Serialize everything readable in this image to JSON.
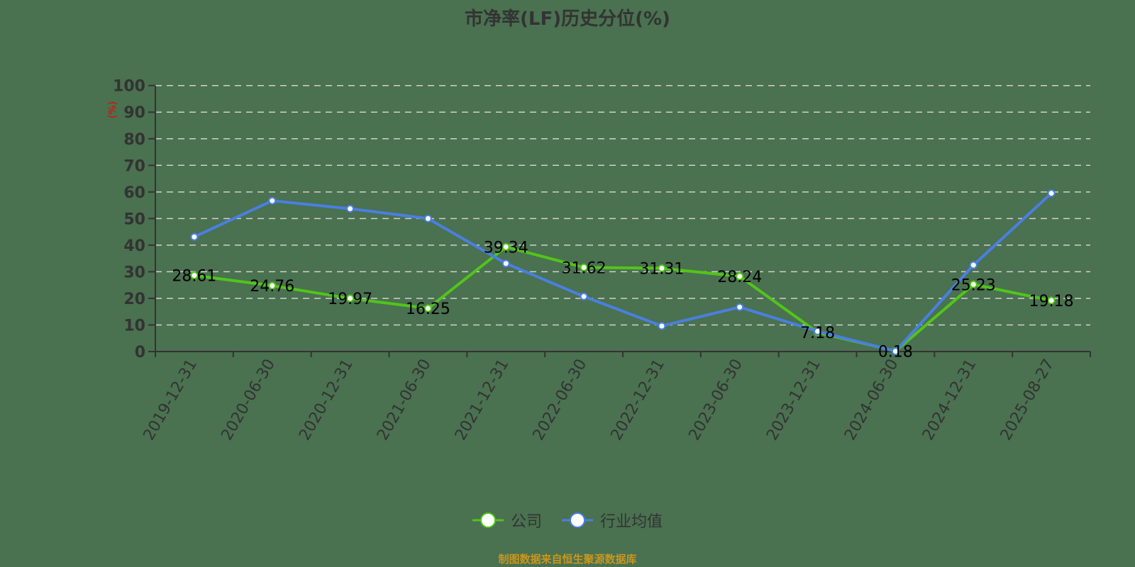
{
  "title": "市净率(LF)历史分位(%)",
  "footer": "制图数据来自恒生聚源数据库",
  "legend": [
    {
      "label": "公司",
      "color": "#52c41a"
    },
    {
      "label": "行业均值",
      "color": "#4a7fe0"
    }
  ],
  "chart_data": {
    "type": "line",
    "title": "市净率(LF)历史分位(%)",
    "xlabel": "",
    "ylabel": "(%)",
    "ylim": [
      0,
      100
    ],
    "yticks": [
      0,
      10,
      20,
      30,
      40,
      50,
      60,
      70,
      80,
      90,
      100
    ],
    "grid": true,
    "legend_position": "bottom",
    "categories": [
      "2019-12-31",
      "2020-06-30",
      "2020-12-31",
      "2021-06-30",
      "2021-12-31",
      "2022-06-30",
      "2022-12-31",
      "2023-06-30",
      "2023-12-31",
      "2024-06-30",
      "2024-12-31",
      "2025-08-27"
    ],
    "series": [
      {
        "name": "公司",
        "color": "#52c41a",
        "labeled": true,
        "values": [
          28.61,
          24.76,
          19.97,
          16.25,
          39.34,
          31.62,
          31.31,
          28.24,
          7.18,
          0.18,
          25.23,
          19.18
        ]
      },
      {
        "name": "行业均值",
        "color": "#4a7fe0",
        "labeled": false,
        "values": [
          43.1,
          56.7,
          53.7,
          50.0,
          33.1,
          20.7,
          9.6,
          16.7,
          7.6,
          0.1,
          32.5,
          59.5
        ]
      }
    ]
  }
}
